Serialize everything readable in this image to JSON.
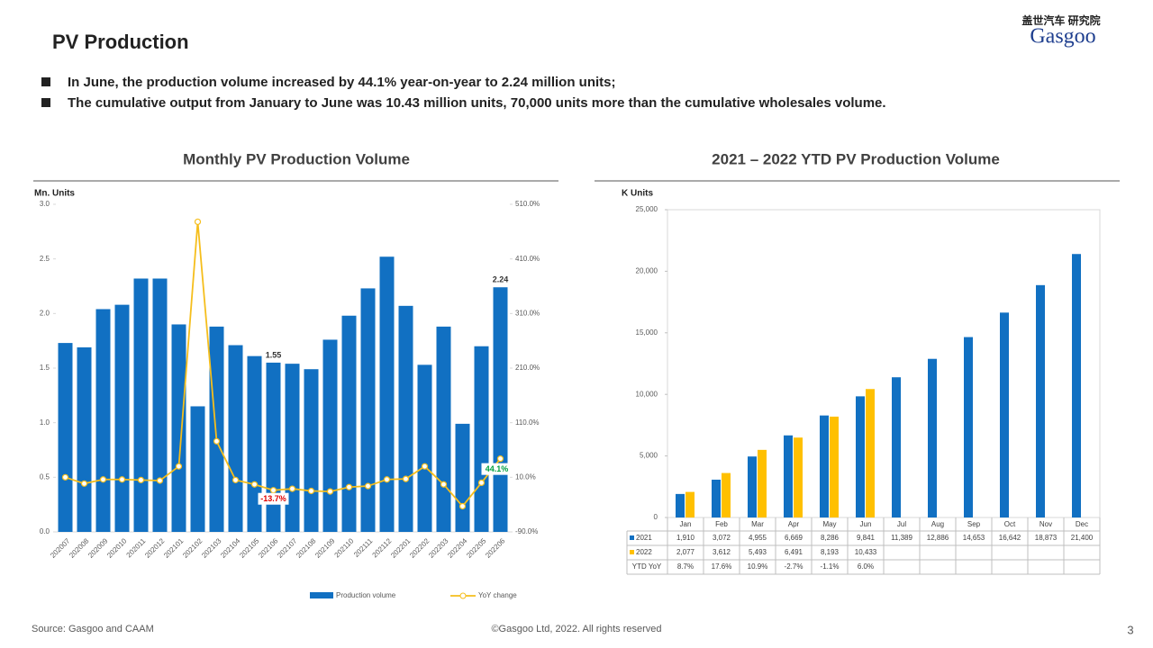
{
  "title": "PV Production",
  "bullets": [
    "In June, the production volume increased by 44.1% year-on-year to 2.24 million units;",
    "The cumulative output from January to June was 10.43 million units, 70,000 units more than the cumulative wholesales volume."
  ],
  "logo": {
    "cn": "盖世汽车 研究院",
    "en": "Gasgoo"
  },
  "source": "Source: Gasgoo and CAAM",
  "copyright": "©Gasgoo Ltd,  2022. All rights reserved",
  "page_number": "3",
  "chart_data": [
    {
      "type": "bar",
      "title": "Monthly PV Production  Volume",
      "y_label": "Mn. Units",
      "categories": [
        "202007",
        "202008",
        "202009",
        "202010",
        "202011",
        "202012",
        "202101",
        "202102",
        "202103",
        "202104",
        "202105",
        "202106",
        "202107",
        "202108",
        "202109",
        "202110",
        "202111",
        "202112",
        "202201",
        "202202",
        "202203",
        "202204",
        "202205",
        "202206"
      ],
      "series": [
        {
          "name": "Production volume",
          "color": "#1170c2",
          "values": [
            1.73,
            1.69,
            2.04,
            2.08,
            2.32,
            2.32,
            1.9,
            1.15,
            1.88,
            1.71,
            1.61,
            1.55,
            1.54,
            1.49,
            1.76,
            1.98,
            2.23,
            2.52,
            2.07,
            1.53,
            1.88,
            0.99,
            1.7,
            2.24
          ],
          "value_labels": [
            null,
            null,
            null,
            null,
            null,
            null,
            null,
            null,
            null,
            null,
            null,
            "1.55",
            null,
            null,
            null,
            null,
            null,
            null,
            null,
            null,
            null,
            null,
            null,
            "2.24"
          ]
        },
        {
          "name": "YoY change",
          "type": "line",
          "axis": "y2",
          "color": "#f5be1c",
          "values": [
            10,
            -1.5,
            6,
            6,
            5,
            4,
            30,
            478,
            76,
            5,
            -3,
            -13.7,
            -11,
            -15,
            -16,
            -8,
            -6,
            6,
            7,
            30,
            -3,
            -43,
            0,
            44.1
          ],
          "value_labels": [
            null,
            null,
            null,
            null,
            null,
            null,
            null,
            null,
            null,
            null,
            null,
            "-13.7%",
            null,
            null,
            null,
            null,
            null,
            null,
            null,
            null,
            null,
            null,
            null,
            "44.1%"
          ]
        }
      ],
      "ylim": [
        0,
        3
      ],
      "yticks": [
        {
          "value": 0,
          "label": "0.0"
        },
        0.5,
        {
          "value": 1,
          "label": "1.0"
        },
        1.5,
        {
          "value": 2,
          "label": "2.0"
        },
        2.5,
        {
          "value": 3,
          "label": "3.0"
        }
      ],
      "y2lim": [
        -90,
        510
      ],
      "y2ticks": [
        {
          "value": -90,
          "label": "-90.0%"
        },
        {
          "value": 10,
          "label": "10.0%"
        },
        {
          "value": 110,
          "label": "110.0%"
        },
        {
          "value": 210,
          "label": "210.0%"
        },
        {
          "value": 310,
          "label": "310.0%"
        },
        {
          "value": 410,
          "label": "410.0%"
        },
        {
          "value": 510,
          "label": "510.0%"
        }
      ],
      "grid": false,
      "legend": "bottom"
    },
    {
      "type": "bar",
      "title": "2021 – 2022 YTD PV Production  Volume",
      "y_label": "K Units",
      "categories": [
        "Jan",
        "Feb",
        "Mar",
        "Apr",
        "May",
        "Jun",
        "Jul",
        "Aug",
        "Sep",
        "Oct",
        "Nov",
        "Dec"
      ],
      "series": [
        {
          "name": "2021",
          "color": "#1170c2",
          "values": [
            1910,
            3072,
            4955,
            6669,
            8286,
            9841,
            11389,
            12886,
            14653,
            16642,
            18873,
            21400
          ],
          "value_labels": [
            "1,910",
            "3,072",
            "4,955",
            "6,669",
            "8,286",
            "9,841",
            "11,389",
            "12,886",
            "14,653",
            "16,642",
            "18,873",
            "21,400"
          ]
        },
        {
          "name": "2022",
          "color": "#ffc000",
          "values": [
            2077,
            3612,
            5493,
            6491,
            8193,
            10433,
            null,
            null,
            null,
            null,
            null,
            null
          ],
          "value_labels": [
            "2,077",
            "3,612",
            "5,493",
            "6,491",
            "8,193",
            "10,433",
            null,
            null,
            null,
            null,
            null,
            null
          ]
        }
      ],
      "table_row": {
        "name": "YTD YoY",
        "values": [
          "8.7%",
          "17.6%",
          "10.9%",
          "-2.7%",
          "-1.1%",
          "6.0%"
        ]
      },
      "ylim": [
        0,
        25000
      ],
      "yticks": [
        0,
        {
          "value": 5000,
          "label": "5,000"
        },
        {
          "value": 10000,
          "label": "10,000"
        },
        {
          "value": 15000,
          "label": "15,000"
        },
        {
          "value": 20000,
          "label": "20,000"
        },
        {
          "value": 25000,
          "label": "25,000"
        }
      ],
      "grid": false,
      "legend": "table"
    }
  ]
}
